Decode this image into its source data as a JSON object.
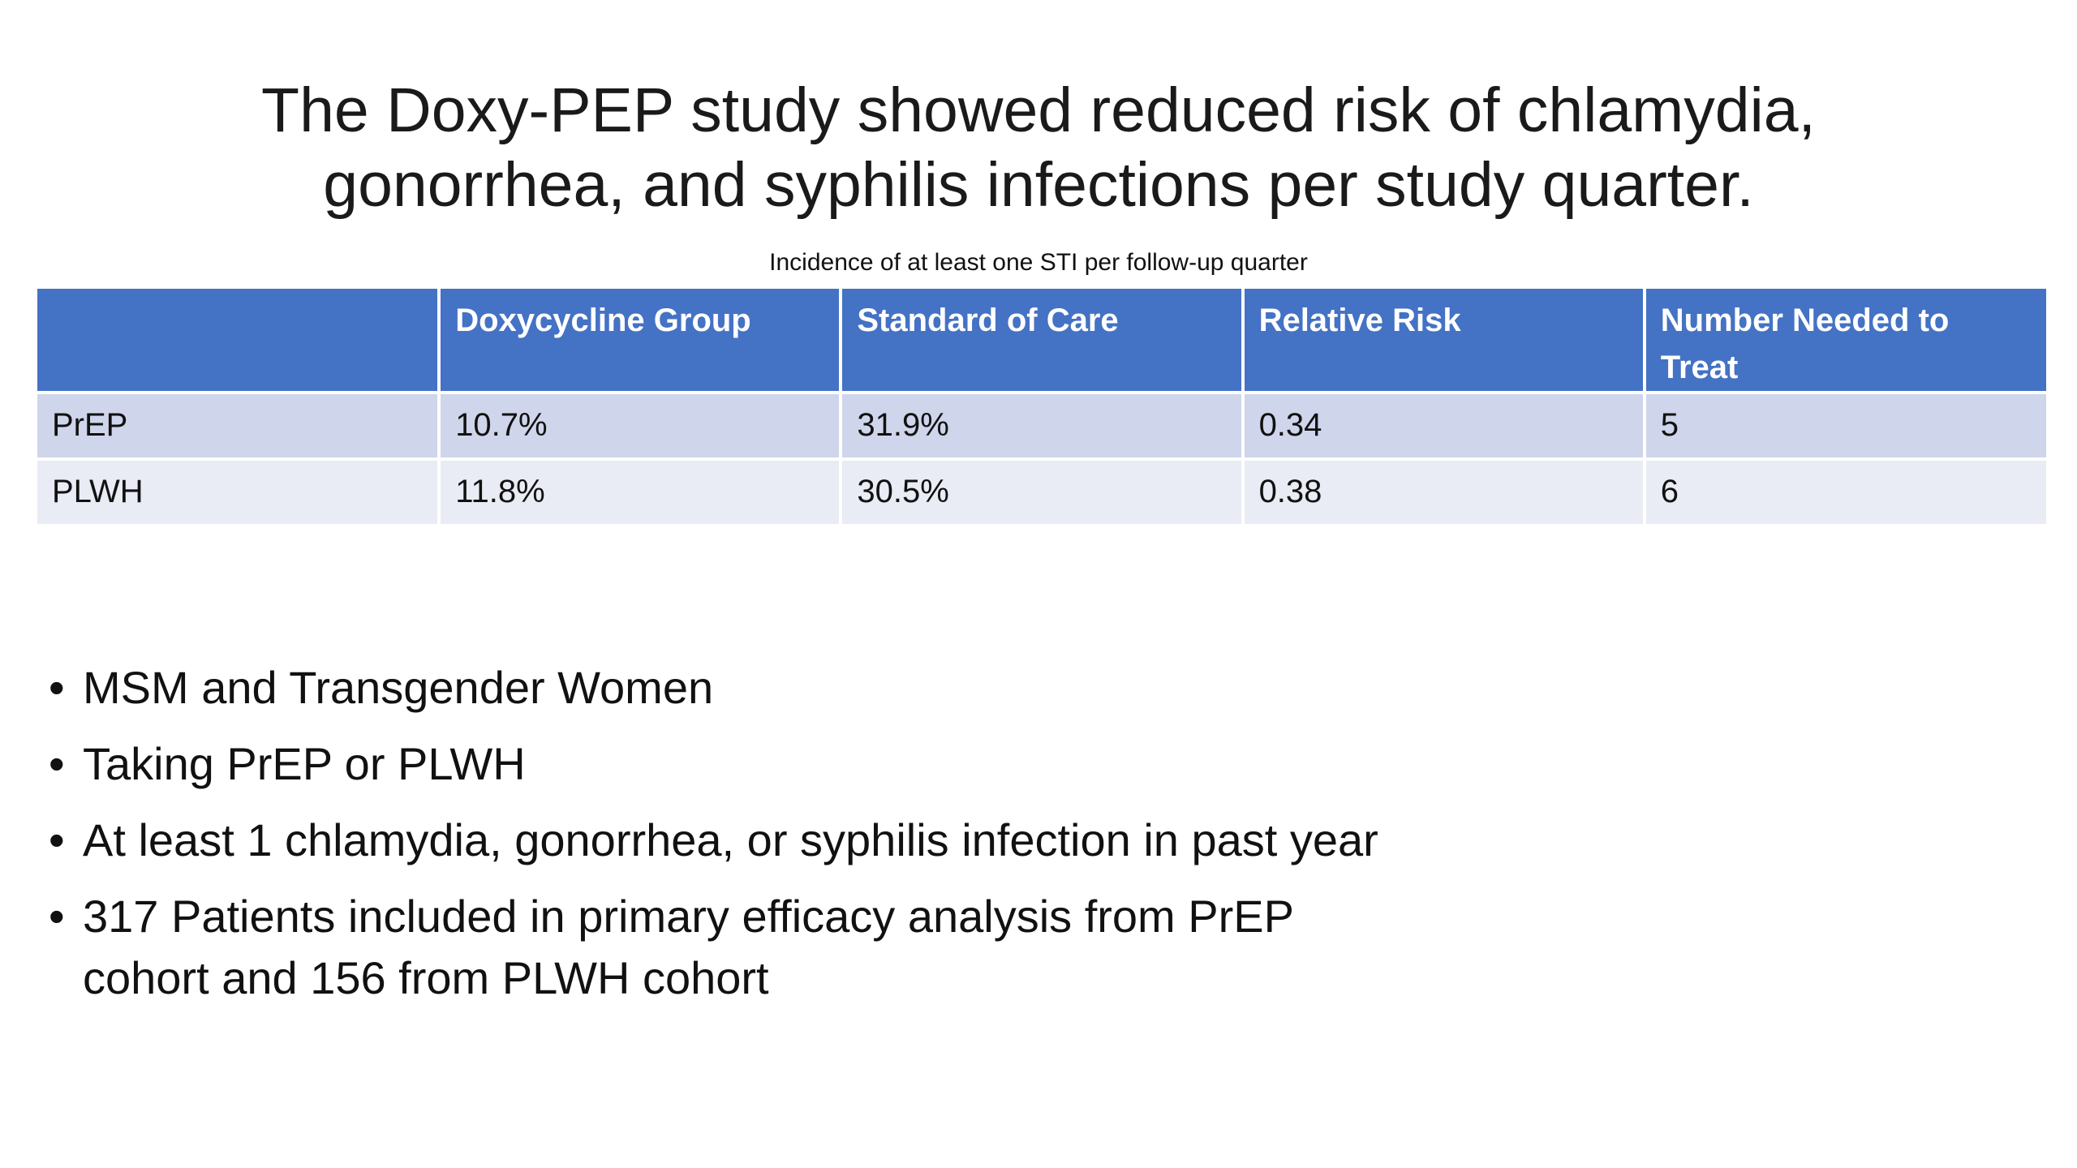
{
  "title": {
    "line1": "The Doxy-PEP study showed reduced risk of chlamydia,",
    "line2": "gonorrhea, and syphilis infections per study quarter."
  },
  "caption": "Incidence of at least one STI per follow-up quarter",
  "table": {
    "headers": [
      "",
      "Doxycycline Group",
      "Standard of Care",
      "Relative Risk",
      "Number Needed to Treat"
    ],
    "rows": [
      [
        "PrEP",
        "10.7%",
        "31.9%",
        "0.34",
        "5"
      ],
      [
        "PLWH",
        "11.8%",
        "30.5%",
        "0.38",
        "6"
      ]
    ],
    "colors": {
      "header_bg": "#4472c4",
      "row_odd_bg": "#cfd5ea",
      "row_even_bg": "#e9ebf5"
    }
  },
  "bullets": {
    "marker": "•",
    "items": [
      "MSM and Transgender Women",
      "Taking PrEP or PLWH",
      "At least 1 chlamydia, gonorrhea, or syphilis infection in past year",
      "317 Patients included in primary efficacy analysis from PrEP cohort and 156 from PLWH cohort"
    ]
  }
}
